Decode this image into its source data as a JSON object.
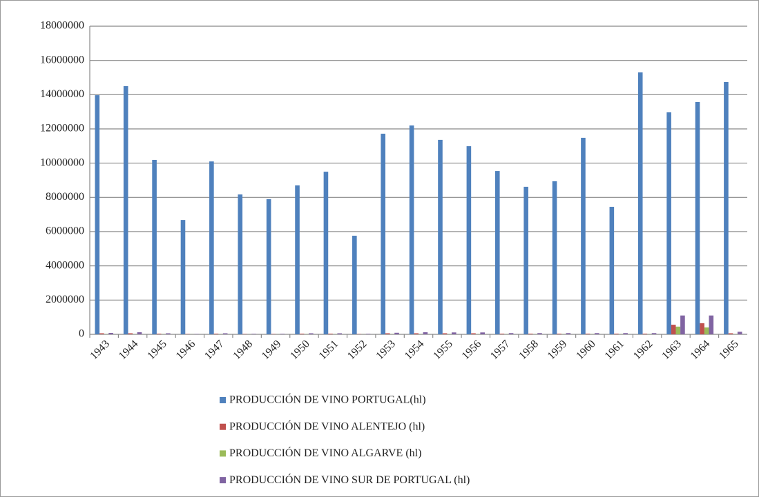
{
  "chart_data": {
    "type": "bar",
    "categories": [
      "1943",
      "1944",
      "1945",
      "1946",
      "1947",
      "1948",
      "1949",
      "1950",
      "1951",
      "1952",
      "1953",
      "1954",
      "1955",
      "1956",
      "1957",
      "1958",
      "1959",
      "1960",
      "1961",
      "1962",
      "1963",
      "1964",
      "1965"
    ],
    "series": [
      {
        "name": "PRODUCCIÓN DE VINO PORTUGAL(hl)",
        "color": "#4f81bd",
        "values": [
          13970000,
          14500000,
          10190000,
          6680000,
          10100000,
          8170000,
          7900000,
          8700000,
          9500000,
          5760000,
          11720000,
          12200000,
          11360000,
          10990000,
          9540000,
          8620000,
          8940000,
          11480000,
          7450000,
          15300000,
          12970000,
          13570000,
          14740000
        ]
      },
      {
        "name": "PRODUCCIÓN DE VINO ALENTEJO (hl)",
        "color": "#c0504d",
        "values": [
          60000,
          60000,
          40000,
          20000,
          40000,
          20000,
          20000,
          40000,
          40000,
          20000,
          60000,
          60000,
          60000,
          60000,
          40000,
          40000,
          40000,
          40000,
          40000,
          40000,
          560000,
          650000,
          60000
        ]
      },
      {
        "name": "PRODUCCIÓN DE VINO ALGARVE (hl)",
        "color": "#9bbb59",
        "values": [
          10000,
          10000,
          10000,
          5000,
          10000,
          5000,
          5000,
          10000,
          10000,
          5000,
          10000,
          10000,
          10000,
          10000,
          10000,
          10000,
          10000,
          10000,
          10000,
          10000,
          450000,
          400000,
          10000
        ]
      },
      {
        "name": "PRODUCCIÓN DE VINO SUR DE PORTUGAL (hl)",
        "color": "#8064a2",
        "values": [
          80000,
          120000,
          60000,
          20000,
          60000,
          30000,
          30000,
          60000,
          60000,
          30000,
          90000,
          120000,
          110000,
          110000,
          70000,
          70000,
          70000,
          70000,
          70000,
          70000,
          1100000,
          1100000,
          150000
        ]
      }
    ],
    "ylim": [
      0,
      18000000
    ],
    "yticks": [
      0,
      2000000,
      4000000,
      6000000,
      8000000,
      10000000,
      12000000,
      14000000,
      16000000,
      18000000
    ],
    "grid": true
  }
}
